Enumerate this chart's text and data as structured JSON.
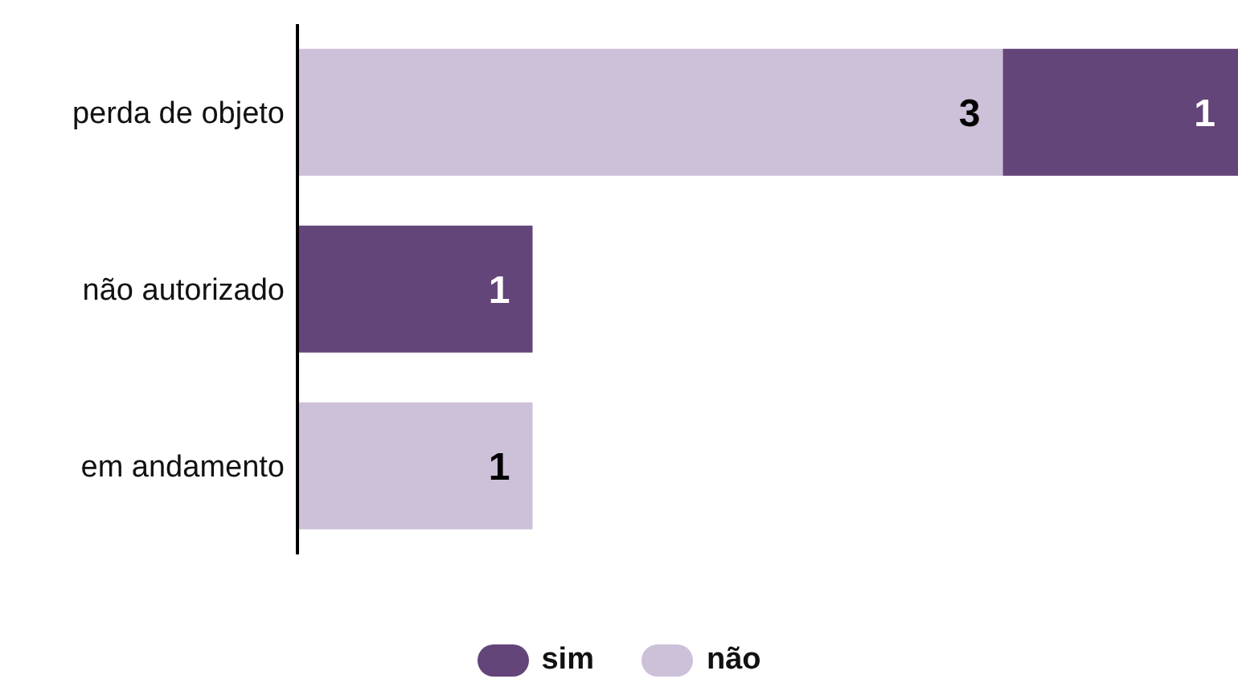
{
  "chart_data": {
    "type": "bar",
    "orientation": "horizontal",
    "stacked": true,
    "categories": [
      "perda de objeto",
      "não autorizado",
      "em andamento"
    ],
    "series": [
      {
        "name": "não",
        "color": "#cdc0d9",
        "values": [
          3,
          null,
          1
        ]
      },
      {
        "name": "sim",
        "color": "#634579",
        "values": [
          1,
          1,
          null
        ]
      }
    ],
    "xlim": [
      0,
      4
    ],
    "data_labels": true,
    "legend": "bottom",
    "grid": false,
    "tick_labels": "y"
  }
}
